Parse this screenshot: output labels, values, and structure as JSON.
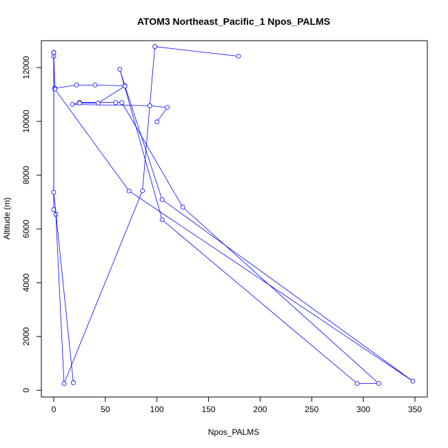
{
  "chart_data": {
    "type": "line",
    "title": "ATOM3 Northeast_Pacific_1 Npos_PALMS",
    "xlabel": "Npos_PALMS",
    "ylabel": "Altitude (m)",
    "xlim": [
      -12,
      362
    ],
    "ylim": [
      -250,
      13000
    ],
    "xticks": [
      0,
      50,
      100,
      150,
      200,
      250,
      300,
      350
    ],
    "yticks": [
      0,
      2000,
      4000,
      6000,
      8000,
      10000,
      12000
    ],
    "grid": false,
    "legend": "none",
    "color": "#0000ff",
    "series": [
      {
        "x": [
          179,
          98,
          86,
          10,
          2,
          0,
          0,
          0,
          1,
          22,
          40,
          69,
          64,
          105,
          294,
          315,
          125,
          66,
          60,
          25,
          18,
          93,
          110,
          100
        ],
        "y": [
          12420,
          12780,
          7420,
          250,
          6540,
          6720,
          12420,
          12560,
          11230,
          11350,
          11350,
          11320,
          11940,
          6340,
          250,
          250,
          6810,
          10700,
          10700,
          10700,
          10630,
          10580,
          10520,
          9980
        ]
      },
      {
        "x": [
          1,
          73,
          348,
          105,
          69,
          43,
          25
        ],
        "y": [
          11200,
          7410,
          340,
          7090,
          11310,
          10680,
          10680
        ]
      },
      {
        "x": [
          0,
          0,
          19
        ],
        "y": [
          12560,
          7360,
          280
        ]
      }
    ]
  }
}
